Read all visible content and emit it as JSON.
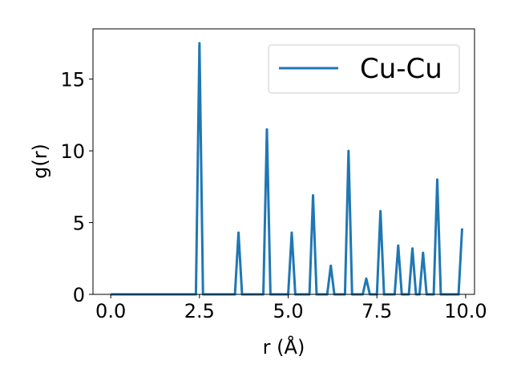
{
  "chart_data": {
    "type": "line",
    "title": "",
    "xlabel": "r (Å)",
    "ylabel": "g(r)",
    "xlim": [
      -0.5,
      10.25
    ],
    "ylim": [
      0,
      18.5
    ],
    "xticks": [
      0.0,
      2.5,
      5.0,
      7.5,
      10.0
    ],
    "xtick_labels": [
      "0.0",
      "2.5",
      "5.0",
      "7.5",
      "10.0"
    ],
    "yticks": [
      0,
      5,
      10,
      15
    ],
    "ytick_labels": [
      "0",
      "5",
      "10",
      "15"
    ],
    "grid": false,
    "legend_position": "top-right",
    "colors": {
      "series": "#1f77b4",
      "axes": "#000000",
      "background": "#ffffff"
    },
    "series": [
      {
        "name": "Cu-Cu",
        "x": [
          0.0,
          2.4,
          2.5,
          2.6,
          3.5,
          3.6,
          3.7,
          4.3,
          4.4,
          4.5,
          5.0,
          5.1,
          5.2,
          5.6,
          5.7,
          5.8,
          6.1,
          6.2,
          6.3,
          6.6,
          6.7,
          6.8,
          7.1,
          7.2,
          7.3,
          7.5,
          7.6,
          7.7,
          8.0,
          8.1,
          8.2,
          8.4,
          8.5,
          8.6,
          8.7,
          8.8,
          8.9,
          9.1,
          9.2,
          9.3,
          9.8,
          9.9
        ],
        "y": [
          0,
          0,
          17.5,
          0,
          0,
          4.3,
          0,
          0,
          11.5,
          0,
          0,
          4.3,
          0,
          0,
          6.9,
          0,
          0,
          2.0,
          0,
          0,
          10.0,
          0,
          0,
          1.1,
          0,
          0,
          5.8,
          0,
          0,
          3.4,
          0,
          0,
          3.2,
          0,
          0,
          2.9,
          0,
          0,
          8.0,
          0,
          0,
          4.6
        ]
      }
    ]
  }
}
